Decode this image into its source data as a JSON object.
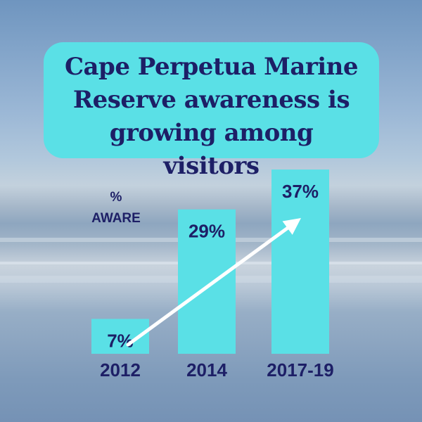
{
  "title": "Cape Perpetua Marine Reserve awareness is growing among visitors",
  "unit_label": "%\nAWARE",
  "colors": {
    "title_box": "#5ae0e6",
    "bar": "#5ae0e6",
    "text": "#1d1f66",
    "arrow": "#ffffff"
  },
  "chart_data": {
    "type": "bar",
    "title": "Cape Perpetua Marine Reserve awareness is growing among visitors",
    "ylabel": "% AWARE",
    "xlabel": "",
    "categories": [
      "2012",
      "2014",
      "2017-19"
    ],
    "values": [
      7,
      29,
      37
    ],
    "data_labels": [
      "7%",
      "29%",
      "37%"
    ],
    "grid": false,
    "annotations": [
      "upward trend arrow from 2012 to 2017-19"
    ]
  }
}
